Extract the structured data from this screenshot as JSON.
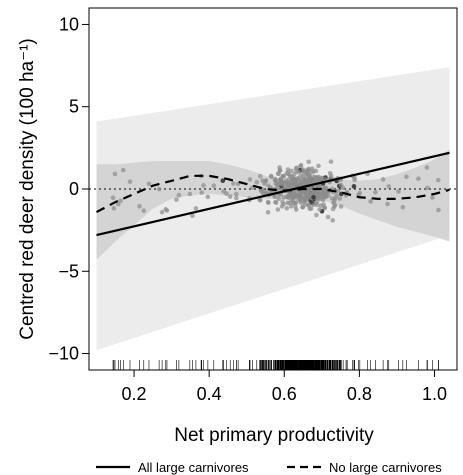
{
  "chart_data": {
    "type": "scatter",
    "title": "",
    "xlabel": "Net primary productivity",
    "ylabel": "Centred red deer density (100 ha⁻¹)",
    "xlim": [
      0.08,
      1.06
    ],
    "ylim": [
      -11,
      11
    ],
    "x_ticks": [
      0.2,
      0.4,
      0.6,
      0.8,
      1.0
    ],
    "x_tick_labels": [
      "0.2",
      "0.4",
      "0.6",
      "0.8",
      "1.0"
    ],
    "y_ticks": [
      -10,
      -5,
      0,
      5,
      10
    ],
    "y_tick_labels": [
      "−10",
      "−5",
      "0",
      "5",
      "10"
    ],
    "reference_line_y": 0,
    "colors": {
      "points": "#8c8c8c",
      "points_dark": "#3a3a3a",
      "band_outer": "#ececec",
      "band_inner": "#d2d2d2",
      "line": "#000000"
    },
    "series": [
      {
        "name": "All large carnivores",
        "style": "solid",
        "x": [
          0.1,
          1.04
        ],
        "y": [
          -2.8,
          2.2
        ],
        "ci_lower": [
          -9.8,
          -2.8
        ],
        "ci_upper": [
          4.1,
          7.4
        ]
      },
      {
        "name": "No large carnivores",
        "style": "dashed",
        "x": [
          0.1,
          0.15,
          0.2,
          0.25,
          0.3,
          0.35,
          0.4,
          0.45,
          0.5,
          0.55,
          0.6,
          0.65,
          0.7,
          0.75,
          0.8,
          0.85,
          0.9,
          0.95,
          1.0,
          1.04
        ],
        "y": [
          -1.4,
          -0.8,
          -0.3,
          0.2,
          0.5,
          0.8,
          0.8,
          0.6,
          0.3,
          0.0,
          -0.1,
          0.0,
          0.0,
          -0.2,
          -0.5,
          -0.6,
          -0.6,
          -0.5,
          -0.3,
          -0.05
        ],
        "ci_lower": [
          -4.3,
          -3.2,
          -2.2,
          -1.2,
          -0.6,
          -0.4,
          -0.3,
          -0.4,
          -0.5,
          -0.6,
          -0.6,
          -0.6,
          -0.7,
          -1.0,
          -1.5,
          -1.9,
          -2.3,
          -2.6,
          -2.9,
          -3.2
        ],
        "ci_upper": [
          1.5,
          1.5,
          1.6,
          1.7,
          1.7,
          1.7,
          1.7,
          1.5,
          1.2,
          0.8,
          0.5,
          0.6,
          0.8,
          0.6,
          0.5,
          0.6,
          0.9,
          1.3,
          1.8,
          2.4
        ]
      }
    ],
    "rug": "individual observations of net primary productivity",
    "points_summary": "~450 observations clustered mostly between x=0.5 and x=0.8, y between -2 and 2"
  },
  "legend": {
    "item1": "All large carnivores",
    "item2": "No large carnivores"
  }
}
